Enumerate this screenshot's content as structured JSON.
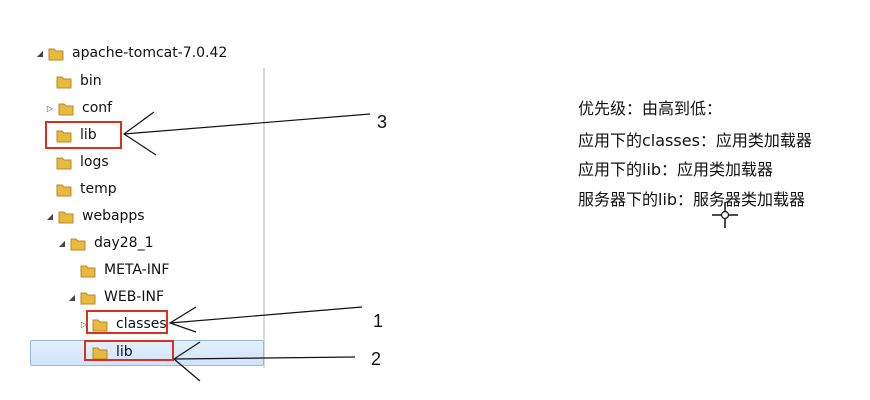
{
  "tree": {
    "root": "apache-tomcat-7.0.42",
    "items": [
      {
        "label": "bin"
      },
      {
        "label": "conf"
      },
      {
        "label": "lib"
      },
      {
        "label": "logs"
      },
      {
        "label": "temp"
      },
      {
        "label": "webapps"
      },
      {
        "label": "day28_1"
      },
      {
        "label": "META-INF"
      },
      {
        "label": "WEB-INF"
      },
      {
        "label": "classes"
      },
      {
        "label": "lib"
      }
    ]
  },
  "callouts": [
    "3",
    "1",
    "2"
  ],
  "notes": {
    "title": "优先级：由高到低：",
    "lines": [
      "应用下的classes：应用类加载器",
      "应用下的lib：应用类加载器",
      "服务器下的lib：服务器类加载器"
    ]
  },
  "colors": {
    "highlight": "#d9301f",
    "folder": "#e8b93c",
    "selection": "#cfe3fb"
  }
}
